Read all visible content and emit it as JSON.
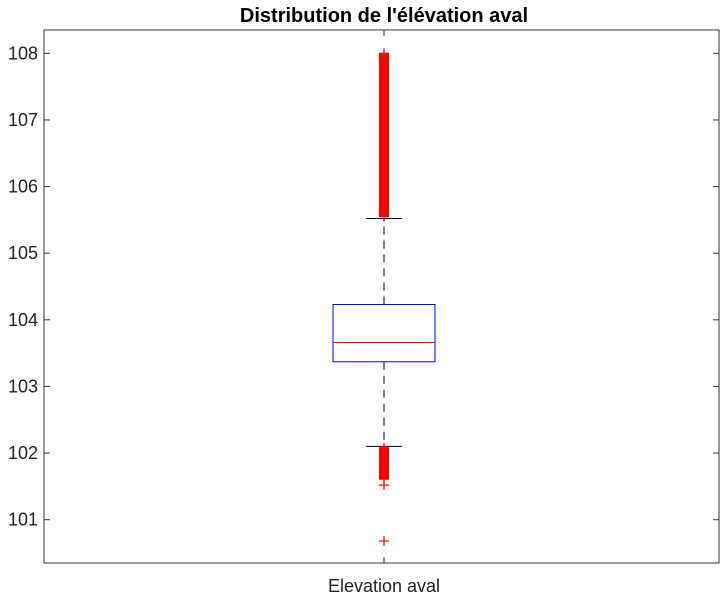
{
  "chart_data": {
    "type": "box",
    "title": "Distribution de l'élévation aval",
    "xlabel": "",
    "ylabel": "",
    "categories": [
      "Elevation aval"
    ],
    "ylim": [
      100.35,
      108.35
    ],
    "yticks": [
      101,
      102,
      103,
      104,
      105,
      106,
      107,
      108
    ],
    "grid": false,
    "box": {
      "whisker_low": 102.1,
      "q1": 103.37,
      "median": 103.66,
      "q3": 104.23,
      "whisker_high": 105.52
    },
    "outliers_high": [
      105.55,
      105.62,
      105.7,
      105.78,
      105.86,
      105.93,
      106.0,
      106.08,
      106.15,
      106.22,
      106.3,
      106.38,
      106.46,
      106.53,
      106.62,
      106.7,
      106.8,
      106.9,
      107.0,
      107.1,
      107.18,
      107.3,
      107.42,
      107.55,
      107.68,
      107.8,
      107.9,
      108.0
    ],
    "outliers_low": [
      102.08,
      102.02,
      101.95,
      101.88,
      101.8,
      101.72,
      101.63,
      101.52,
      100.68
    ],
    "colors": {
      "box": "#0000ff",
      "median": "#ff0000",
      "outlier": "#ff0000",
      "whisker": "#555555",
      "axes": "#333333"
    }
  }
}
